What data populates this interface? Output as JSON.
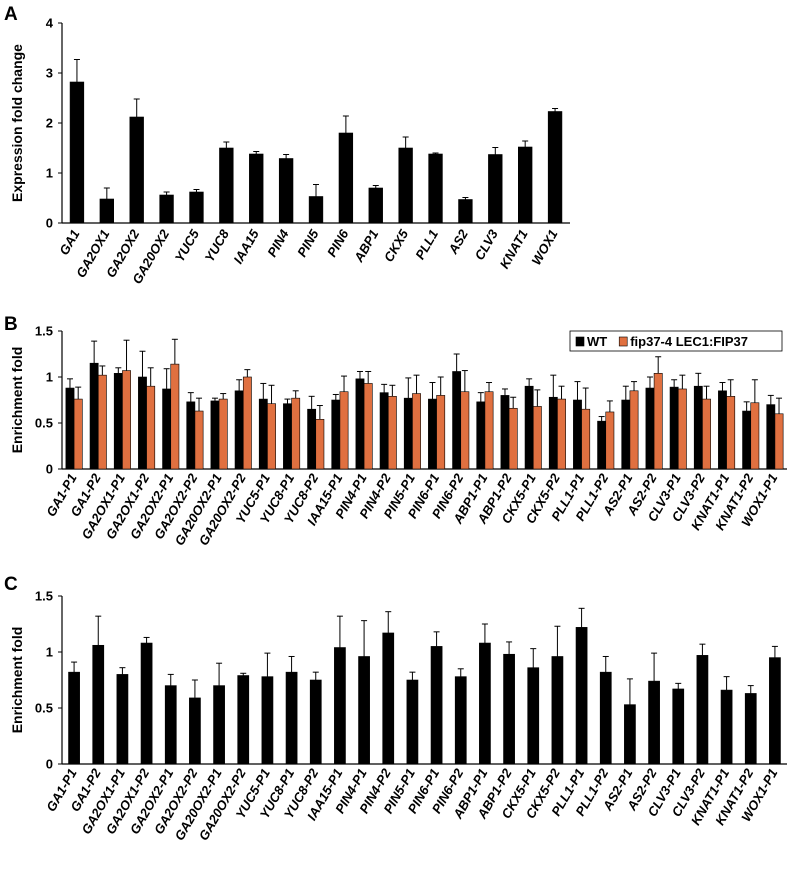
{
  "chart_data": [
    {
      "panel": "A",
      "type": "bar",
      "ylabel": "Expression fold change",
      "ylim": [
        0,
        4
      ],
      "yticks": [
        "0",
        "1",
        "2",
        "3",
        "4"
      ],
      "categories": [
        "GA1",
        "GA2OX1",
        "GA2OX2",
        "GA20OX2",
        "YUC5",
        "YUC8",
        "IAA15",
        "PIN4",
        "PIN5",
        "PIN6",
        "ABP1",
        "CKX5",
        "PLL1",
        "AS2",
        "CLV3",
        "KNAT1",
        "WOX1"
      ],
      "series": [
        {
          "color": "#000000",
          "values": [
            2.82,
            0.48,
            2.12,
            0.56,
            0.62,
            1.5,
            1.38,
            1.29,
            0.53,
            1.8,
            0.7,
            1.5,
            1.38,
            0.47,
            1.37,
            1.52,
            2.23
          ],
          "errors": [
            0.45,
            0.22,
            0.36,
            0.06,
            0.05,
            0.12,
            0.05,
            0.08,
            0.24,
            0.34,
            0.05,
            0.22,
            0.02,
            0.04,
            0.14,
            0.12,
            0.06
          ]
        }
      ]
    },
    {
      "panel": "B",
      "type": "bar",
      "ylabel": "Enrichment fold",
      "ylim": [
        0,
        1.5
      ],
      "yticks": [
        "0",
        "0.5",
        "1",
        "1.5"
      ],
      "legend_position": "top-right",
      "categories": [
        "GA1-P1",
        "GA1-P2",
        "GA2OX1-P1",
        "GA2OX1-P2",
        "GA2OX2-P1",
        "GA2OX2-P2",
        "GA20OX2-P1",
        "GA20OX2-P2",
        "YUC5-P1",
        "YUC8-P1",
        "YUC8-P2",
        "IAA15-P1",
        "PIN4-P1",
        "PIN4-P2",
        "PIN5-P1",
        "PIN6-P1",
        "PIN6-P2",
        "ABP1-P1",
        "ABP1-P2",
        "CKX5-P1",
        "CKX5-P2",
        "PLL1-P1",
        "PLL1-P2",
        "AS2-P1",
        "AS2-P2",
        "CLV3-P1",
        "CLV3-P2",
        "KNAT1-P1",
        "KNAT1-P2",
        "WOX1-P1"
      ],
      "series": [
        {
          "name": "WT",
          "color": "#000000",
          "values": [
            0.88,
            1.15,
            1.04,
            1.0,
            0.87,
            0.73,
            0.74,
            0.85,
            0.76,
            0.71,
            0.65,
            0.75,
            0.98,
            0.83,
            0.77,
            0.76,
            1.06,
            0.73,
            0.8,
            0.9,
            0.78,
            0.75,
            0.52,
            0.75,
            0.88,
            0.89,
            0.9,
            0.85,
            0.63,
            0.7
          ],
          "errors": [
            0.1,
            0.24,
            0.06,
            0.28,
            0.22,
            0.1,
            0.03,
            0.12,
            0.17,
            0.05,
            0.14,
            0.06,
            0.08,
            0.09,
            0.22,
            0.18,
            0.19,
            0.1,
            0.07,
            0.08,
            0.24,
            0.2,
            0.05,
            0.15,
            0.12,
            0.08,
            0.14,
            0.09,
            0.1,
            0.1
          ]
        },
        {
          "name": "fip37-4 LEC1:FIP37",
          "color": "#E07040",
          "values": [
            0.76,
            1.02,
            1.07,
            0.9,
            1.14,
            0.63,
            0.76,
            1.0,
            0.71,
            0.77,
            0.54,
            0.84,
            0.93,
            0.79,
            0.82,
            0.8,
            0.84,
            0.84,
            0.66,
            0.68,
            0.76,
            0.65,
            0.62,
            0.85,
            1.04,
            0.87,
            0.76,
            0.79,
            0.72,
            0.6
          ],
          "errors": [
            0.13,
            0.1,
            0.33,
            0.2,
            0.27,
            0.14,
            0.06,
            0.08,
            0.2,
            0.08,
            0.15,
            0.17,
            0.13,
            0.12,
            0.2,
            0.2,
            0.23,
            0.1,
            0.12,
            0.18,
            0.14,
            0.23,
            0.12,
            0.1,
            0.18,
            0.15,
            0.14,
            0.18,
            0.25,
            0.17
          ]
        }
      ]
    },
    {
      "panel": "C",
      "type": "bar",
      "ylabel": "Enrichment fold",
      "ylim": [
        0,
        1.5
      ],
      "yticks": [
        "0",
        "0.5",
        "1",
        "1.5"
      ],
      "categories": [
        "GA1-P1",
        "GA1-P2",
        "GA2OX1-P1",
        "GA2OX1-P2",
        "GA2OX2-P1",
        "GA2OX2-P2",
        "GA20OX2-P1",
        "GA20OX2-P2",
        "YUC5-P1",
        "YUC8-P1",
        "YUC8-P2",
        "IAA15-P1",
        "PIN4-P1",
        "PIN4-P2",
        "PIN5-P1",
        "PIN6-P1",
        "PIN6-P2",
        "ABP1-P1",
        "ABP1-P2",
        "CKX5-P1",
        "CKX5-P2",
        "PLL1-P1",
        "PLL1-P2",
        "AS2-P1",
        "AS2-P2",
        "CLV3-P1",
        "CLV3-P2",
        "KNAT1-P1",
        "KNAT1-P2",
        "WOX1-P1"
      ],
      "series": [
        {
          "color": "#000000",
          "values": [
            0.82,
            1.06,
            0.8,
            1.08,
            0.7,
            0.59,
            0.7,
            0.79,
            0.78,
            0.82,
            0.75,
            1.04,
            0.96,
            1.17,
            0.75,
            1.05,
            0.78,
            1.08,
            0.98,
            0.86,
            0.96,
            1.22,
            0.82,
            0.53,
            0.74,
            0.67,
            0.97,
            0.66,
            0.63,
            0.95
          ],
          "errors": [
            0.09,
            0.26,
            0.06,
            0.05,
            0.1,
            0.16,
            0.2,
            0.02,
            0.21,
            0.14,
            0.07,
            0.28,
            0.32,
            0.19,
            0.07,
            0.13,
            0.07,
            0.17,
            0.11,
            0.17,
            0.27,
            0.17,
            0.14,
            0.23,
            0.25,
            0.05,
            0.1,
            0.12,
            0.07,
            0.1
          ]
        }
      ]
    }
  ]
}
